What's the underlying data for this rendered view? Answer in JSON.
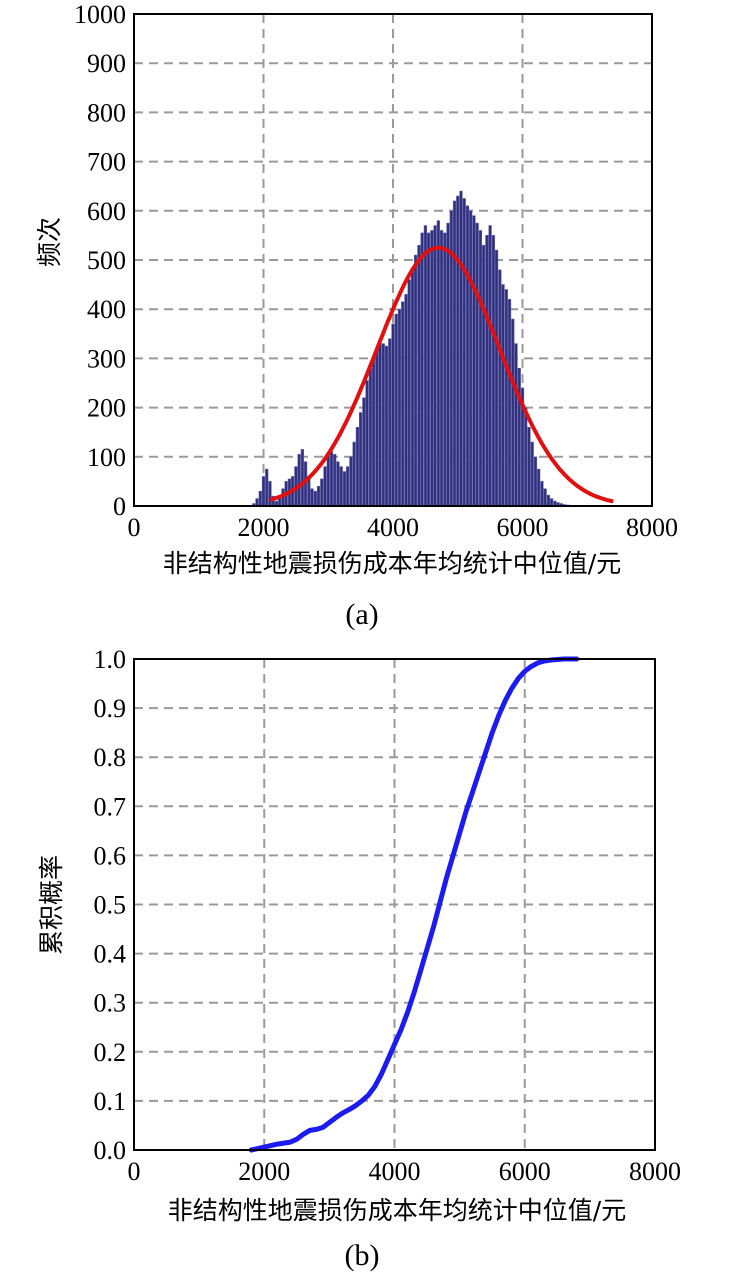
{
  "chart_data": [
    {
      "type": "bar",
      "caption": "(a)",
      "xlabel": "非结构性地震损伤成本年均统计中位值/元",
      "ylabel": "频次",
      "xlim": [
        0,
        8000
      ],
      "ylim": [
        0,
        1000
      ],
      "xticks": [
        "0",
        "2000",
        "4000",
        "6000",
        "8000"
      ],
      "yticks": [
        "0",
        "100",
        "200",
        "300",
        "400",
        "500",
        "600",
        "700",
        "800",
        "900",
        "1000"
      ],
      "grid": true,
      "bar_color": "#30307a",
      "bin_width": 40,
      "histogram": {
        "x": [
          1850,
          1900,
          1950,
          2000,
          2050,
          2100,
          2150,
          2200,
          2250,
          2300,
          2350,
          2400,
          2450,
          2500,
          2550,
          2600,
          2650,
          2700,
          2750,
          2800,
          2850,
          2900,
          2950,
          3000,
          3050,
          3100,
          3150,
          3200,
          3250,
          3300,
          3350,
          3400,
          3450,
          3500,
          3550,
          3600,
          3650,
          3700,
          3750,
          3800,
          3850,
          3900,
          3950,
          4000,
          4050,
          4100,
          4150,
          4200,
          4250,
          4300,
          4350,
          4400,
          4450,
          4500,
          4550,
          4600,
          4650,
          4700,
          4750,
          4800,
          4850,
          4900,
          4950,
          5000,
          5050,
          5100,
          5150,
          5200,
          5250,
          5300,
          5350,
          5400,
          5450,
          5500,
          5550,
          5600,
          5650,
          5700,
          5750,
          5800,
          5850,
          5900,
          5950,
          6000,
          6050,
          6100,
          6150,
          6200,
          6250,
          6300,
          6350,
          6400,
          6450,
          6500,
          6550,
          6600,
          6650,
          6700,
          6750,
          6800
        ],
        "values": [
          5,
          15,
          30,
          60,
          75,
          50,
          20,
          10,
          15,
          35,
          50,
          55,
          60,
          80,
          105,
          115,
          90,
          55,
          35,
          30,
          40,
          55,
          80,
          100,
          110,
          105,
          90,
          80,
          70,
          80,
          100,
          130,
          160,
          190,
          220,
          255,
          280,
          300,
          320,
          335,
          330,
          325,
          340,
          370,
          390,
          400,
          415,
          430,
          460,
          480,
          510,
          530,
          555,
          570,
          555,
          560,
          570,
          580,
          560,
          555,
          575,
          600,
          620,
          630,
          640,
          625,
          610,
          600,
          590,
          575,
          560,
          530,
          550,
          570,
          550,
          520,
          480,
          450,
          440,
          420,
          380,
          330,
          280,
          240,
          200,
          160,
          130,
          100,
          75,
          50,
          35,
          22,
          15,
          10,
          7,
          5,
          3,
          2,
          1,
          0
        ]
      },
      "fit_curve": {
        "name": "",
        "color": "#e01010",
        "type": "normal",
        "mean": 4700,
        "sd": 950,
        "peak": 525,
        "x_range": [
          2100,
          7400
        ]
      }
    },
    {
      "type": "line",
      "caption": "(b)",
      "xlabel": "非结构性地震损伤成本年均统计中位值/元",
      "ylabel": "累积概率",
      "xlim": [
        0,
        8000
      ],
      "ylim": [
        0,
        1.0
      ],
      "xticks": [
        "0",
        "2000",
        "4000",
        "6000",
        "8000"
      ],
      "yticks": [
        "0.0",
        "0.1",
        "0.2",
        "0.3",
        "0.4",
        "0.5",
        "0.6",
        "0.7",
        "0.8",
        "0.9",
        "1.0"
      ],
      "grid": true,
      "line_color": "#1c1cf0",
      "series": [
        {
          "x": [
            1800,
            2000,
            2200,
            2400,
            2500,
            2600,
            2700,
            2800,
            2900,
            3000,
            3100,
            3200,
            3300,
            3400,
            3500,
            3600,
            3700,
            3800,
            3900,
            4000,
            4100,
            4200,
            4300,
            4400,
            4500,
            4600,
            4700,
            4800,
            4900,
            5000,
            5100,
            5200,
            5300,
            5400,
            5500,
            5600,
            5700,
            5800,
            5900,
            6000,
            6100,
            6200,
            6300,
            6400,
            6500,
            6600,
            6700,
            6800
          ],
          "y": [
            0.0,
            0.006,
            0.012,
            0.016,
            0.022,
            0.032,
            0.04,
            0.042,
            0.046,
            0.056,
            0.066,
            0.075,
            0.082,
            0.09,
            0.1,
            0.112,
            0.13,
            0.155,
            0.185,
            0.215,
            0.245,
            0.28,
            0.32,
            0.365,
            0.41,
            0.455,
            0.505,
            0.555,
            0.6,
            0.645,
            0.69,
            0.73,
            0.77,
            0.81,
            0.85,
            0.885,
            0.915,
            0.94,
            0.96,
            0.975,
            0.985,
            0.992,
            0.996,
            0.998,
            0.999,
            1.0,
            1.0,
            1.0
          ]
        }
      ]
    }
  ]
}
